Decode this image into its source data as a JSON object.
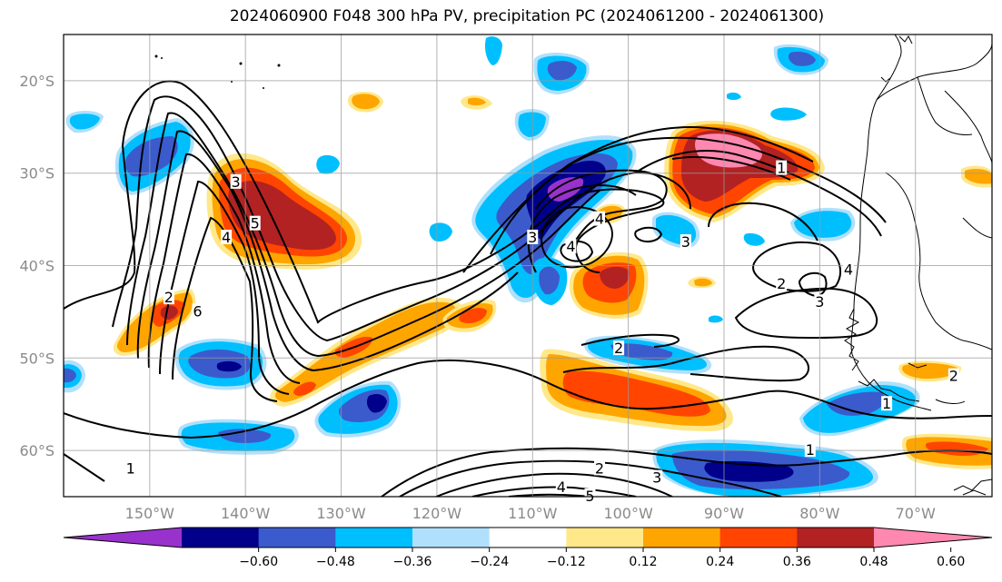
{
  "chart_data": {
    "type": "contour_map",
    "title": "2024060900 F048 300 hPa PV, precipitation PC (2024061200 - 2024061300)",
    "x_ticks": [
      "150°W",
      "140°W",
      "130°W",
      "120°W",
      "110°W",
      "100°W",
      "90°W",
      "80°W",
      "70°W"
    ],
    "x_tick_values": [
      -150,
      -140,
      -130,
      -120,
      -110,
      -100,
      -90,
      -80,
      -70
    ],
    "y_ticks": [
      "20°S",
      "30°S",
      "40°S",
      "50°S",
      "60°S"
    ],
    "y_tick_values": [
      -20,
      -30,
      -40,
      -50,
      -60
    ],
    "lon_range": [
      -159,
      -62
    ],
    "lat_range": [
      -65,
      -15
    ],
    "grid": true,
    "colorbar": {
      "orientation": "horizontal",
      "extend": "both",
      "tick_labels": [
        "−0.60",
        "−0.48",
        "−0.36",
        "−0.24",
        "−0.12",
        "0.12",
        "0.24",
        "0.36",
        "0.48",
        "0.60"
      ],
      "colors": [
        "#9932cc",
        "#00008b",
        "#3b5bcc",
        "#00bfff",
        "#b0e0fb",
        "#ffffff",
        "#ffe88a",
        "#ffa500",
        "#ff4500",
        "#b22222",
        "#ff88b0"
      ]
    },
    "contour_labels": [
      "1",
      "2",
      "3",
      "4",
      "5",
      "6"
    ],
    "pv_contours": [
      {
        "level": 1,
        "label_positions": [
          [
            -84,
            -29.5
          ],
          [
            -73,
            -55
          ],
          [
            -81,
            -60
          ],
          [
            -152,
            -62
          ]
        ]
      },
      {
        "level": 2,
        "label_positions": [
          [
            -148,
            -43.5
          ],
          [
            -101,
            -49
          ],
          [
            -84,
            -42
          ],
          [
            -66,
            -52
          ],
          [
            -103,
            -62
          ]
        ]
      },
      {
        "level": 3,
        "label_positions": [
          [
            -141,
            -31
          ],
          [
            -110,
            -37
          ],
          [
            -94,
            -37.5
          ],
          [
            -80,
            -44
          ],
          [
            -97,
            -63
          ]
        ]
      },
      {
        "level": 4,
        "label_positions": [
          [
            -142,
            -37
          ],
          [
            -106,
            -38
          ],
          [
            -103,
            -35
          ],
          [
            -77,
            -40.5
          ],
          [
            -107,
            -64
          ]
        ]
      },
      {
        "level": 5,
        "label_positions": [
          [
            -139,
            -35.5
          ],
          [
            -104,
            -65
          ]
        ]
      },
      {
        "level": 6,
        "label_positions": [
          [
            -145,
            -45
          ]
        ]
      }
    ],
    "precip_pc_anomalies": [
      {
        "lon": -136,
        "lat": -36,
        "value": 0.5
      },
      {
        "lon": -147,
        "lat": -46,
        "value": 0.4
      },
      {
        "lon": -127,
        "lat": -49.5,
        "value": 0.3
      },
      {
        "lon": -115,
        "lat": -46,
        "value": 0.3
      },
      {
        "lon": -100,
        "lat": -53.5,
        "value": 0.4
      },
      {
        "lon": -86,
        "lat": -30,
        "value": 0.6
      },
      {
        "lon": -98.5,
        "lat": -42,
        "value": 0.5
      },
      {
        "lon": -105,
        "lat": -23,
        "value": 0.24
      },
      {
        "lon": -122,
        "lat": -22,
        "value": 0.3
      },
      {
        "lon": -66,
        "lat": -51.5,
        "value": 0.3
      },
      {
        "lon": -66,
        "lat": -60,
        "value": 0.36
      },
      {
        "lon": -104,
        "lat": -36,
        "value": 0.3
      },
      {
        "lon": -106,
        "lat": -34.5,
        "value": -0.6
      },
      {
        "lon": -146,
        "lat": -28.5,
        "value": -0.4
      },
      {
        "lon": -142,
        "lat": -51,
        "value": -0.45
      },
      {
        "lon": -122,
        "lat": -55,
        "value": -0.5
      },
      {
        "lon": -140,
        "lat": -59,
        "value": -0.36
      },
      {
        "lon": -82,
        "lat": -62,
        "value": -0.55
      },
      {
        "lon": -74,
        "lat": -57,
        "value": -0.36
      },
      {
        "lon": -100,
        "lat": -49,
        "value": -0.36
      },
      {
        "lon": -103,
        "lat": -43,
        "value": -0.36
      },
      {
        "lon": -91,
        "lat": -38.5,
        "value": -0.3
      },
      {
        "lon": -77,
        "lat": -36,
        "value": -0.3
      },
      {
        "lon": -105,
        "lat": -18.5,
        "value": -0.36
      },
      {
        "lon": -80,
        "lat": -17.5,
        "value": -0.3
      },
      {
        "lon": -154,
        "lat": -24.5,
        "value": -0.3
      },
      {
        "lon": -157,
        "lat": -52,
        "value": -0.3
      }
    ]
  }
}
